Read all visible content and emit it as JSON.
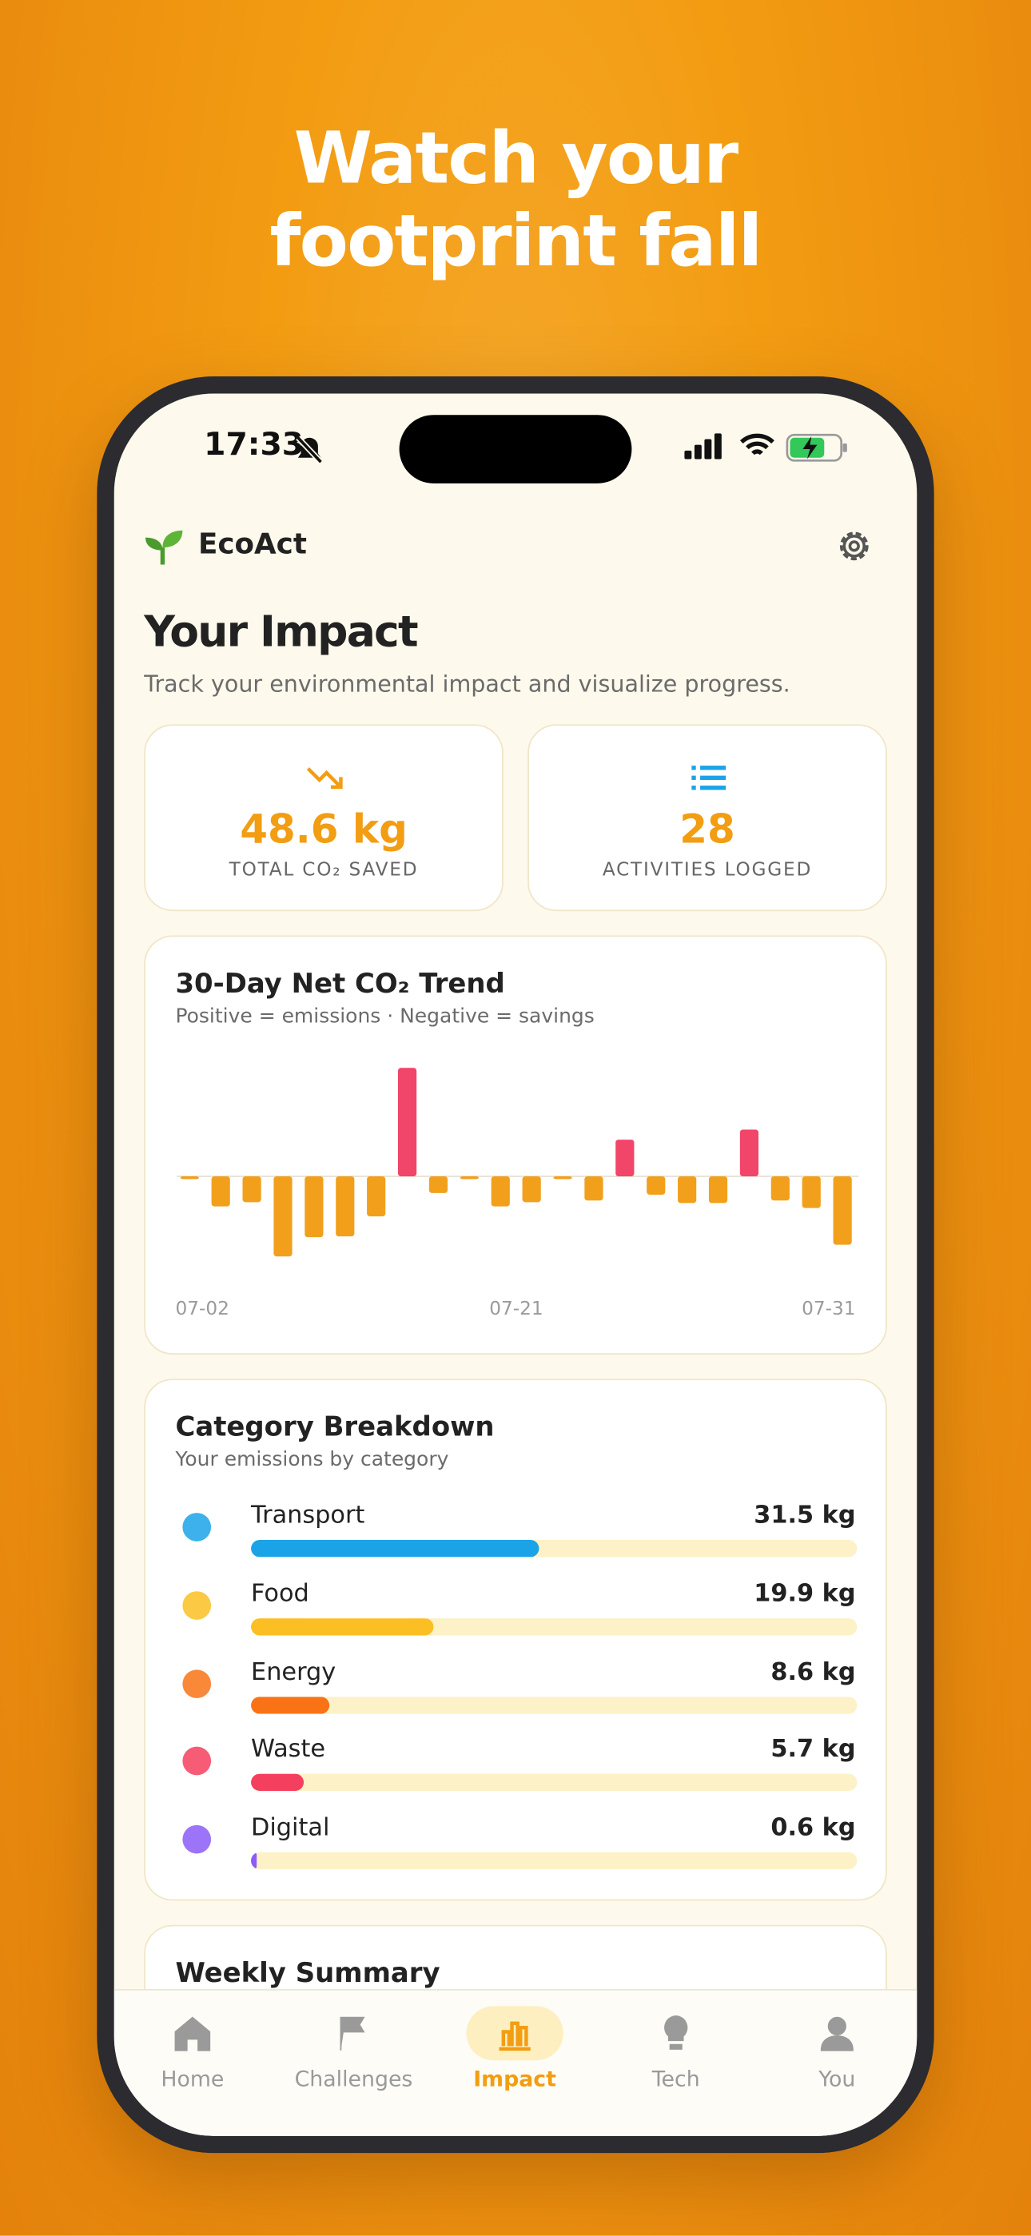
{
  "headline": [
    "Watch your",
    "footprint fall"
  ],
  "status": {
    "time": "17:33"
  },
  "app": {
    "name": "EcoAct"
  },
  "page": {
    "title": "Your Impact",
    "subtitle": "Track your environmental impact and visualize progress."
  },
  "stats": [
    {
      "value": "48.6 kg",
      "label": "TOTAL CO₂ SAVED"
    },
    {
      "value": "28",
      "label": "ACTIVITIES LOGGED"
    }
  ],
  "trend": {
    "type": "bar",
    "title": "30-Day Net CO₂ Trend",
    "subtitle": "Positive = emissions · Negative = savings",
    "x_labels": [
      "07-02",
      "07-21",
      "07-31"
    ],
    "values": [
      -0.2,
      -3.6,
      -3.1,
      -9.6,
      -7.3,
      -7.2,
      -4.8,
      13.0,
      -2.0,
      -0.3,
      -3.6,
      -3.1,
      -0.3,
      -2.9,
      4.4,
      -2.2,
      -3.2,
      -3.2,
      5.6,
      -2.9,
      -3.8,
      -8.2
    ],
    "colors": {
      "positive": "#f2456a",
      "negative": "#f2a01c"
    }
  },
  "breakdown": {
    "title": "Category Breakdown",
    "subtitle": "Your emissions by category",
    "items": [
      {
        "name": "Transport",
        "value": 31.5,
        "value_label": "31.5 kg",
        "color": "#1ba3e8"
      },
      {
        "name": "Food",
        "value": 19.9,
        "value_label": "19.9 kg",
        "color": "#fbbf24"
      },
      {
        "name": "Energy",
        "value": 8.6,
        "value_label": "8.6 kg",
        "color": "#f97316"
      },
      {
        "name": "Waste",
        "value": 5.7,
        "value_label": "5.7 kg",
        "color": "#f43f5e"
      },
      {
        "name": "Digital",
        "value": 0.6,
        "value_label": "0.6 kg",
        "color": "#8b5cf6"
      }
    ]
  },
  "weekly": {
    "title": "Weekly Summary"
  },
  "tabs": [
    {
      "label": "Home"
    },
    {
      "label": "Challenges"
    },
    {
      "label": "Impact"
    },
    {
      "label": "Tech"
    },
    {
      "label": "You"
    }
  ],
  "active_tab": 2
}
